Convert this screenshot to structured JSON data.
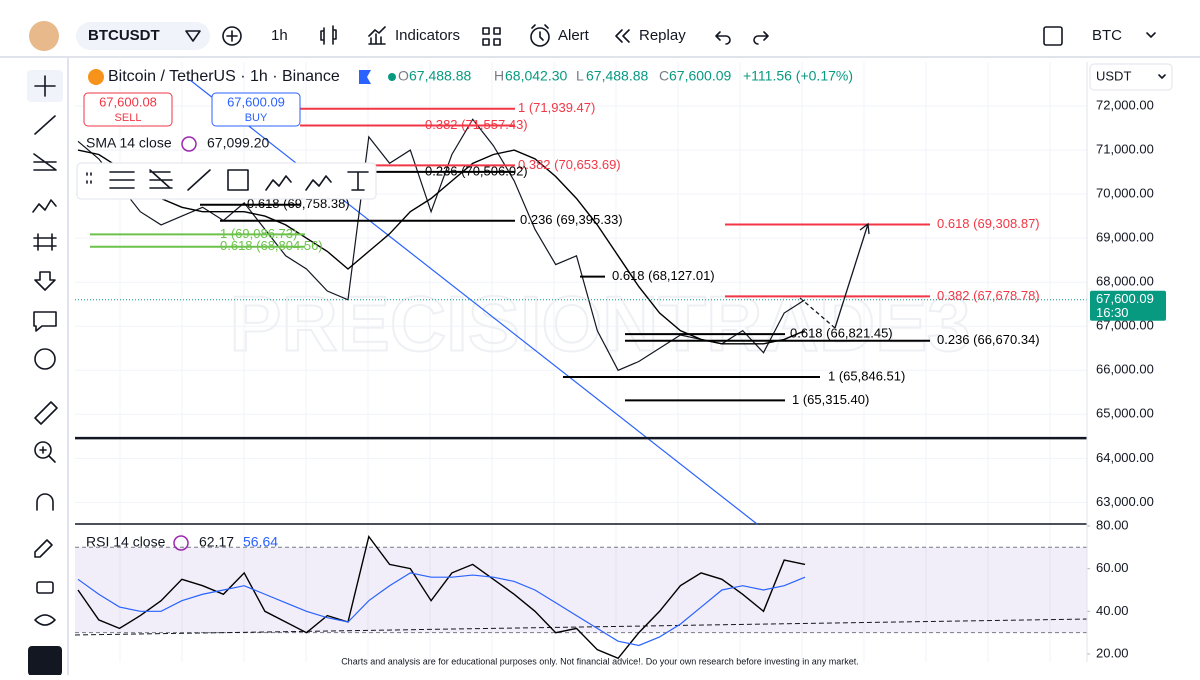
{
  "toolbar": {
    "symbol": "BTCUSDT",
    "interval": "1h",
    "indicators": "Indicators",
    "alert": "Alert",
    "replay": "Replay",
    "currency": "BTC"
  },
  "legend": {
    "title": "Bitcoin / TetherUS · 1h · Binance",
    "open": {
      "label": "O",
      "value": "67,488.88"
    },
    "high": {
      "label": "H",
      "value": "68,042.30"
    },
    "low": {
      "label": "L",
      "value": "67,488.88"
    },
    "close": {
      "label": "C",
      "value": "67,600.09"
    },
    "change": "+111.56 (+0.17%)",
    "sell": {
      "price": "67,600.08",
      "label": "SELL"
    },
    "buy": {
      "price": "67,600.09",
      "label": "BUY"
    },
    "sma": {
      "label": "SMA 14 close",
      "value": "67,099.20"
    }
  },
  "quote_currency": "USDT",
  "watermark": "PRECISIONTRADE3",
  "price_axis": {
    "ylim": [
      62600,
      73000
    ],
    "ticks": [
      {
        "value": 72000,
        "label": "72,000.00"
      },
      {
        "value": 71000,
        "label": "71,000.00"
      },
      {
        "value": 70000,
        "label": "70,000.00"
      },
      {
        "value": 69000,
        "label": "69,000.00"
      },
      {
        "value": 68000,
        "label": "68,000.00"
      },
      {
        "value": 67000,
        "label": "67,000.00"
      },
      {
        "value": 66000,
        "label": "66,000.00"
      },
      {
        "value": 65000,
        "label": "65,000.00"
      },
      {
        "value": 64000,
        "label": "64,000.00"
      },
      {
        "value": 63000,
        "label": "63,000.00"
      }
    ]
  },
  "current_price": {
    "value": 67600.09,
    "label": "67,600.09",
    "countdown": "16:30"
  },
  "price": {
    "color": "#131722",
    "values": [
      71200,
      70800,
      70200,
      69600,
      69300,
      69500,
      69700,
      69400,
      69800,
      69200,
      68600,
      68300,
      67800,
      67600,
      71300,
      70700,
      71000,
      69600,
      70900,
      71700,
      71100,
      70300,
      69200,
      68400,
      68600,
      66900,
      66000,
      66200,
      66500,
      66800,
      66700,
      66600,
      66900,
      66400,
      67300,
      67600
    ]
  },
  "sma_line": {
    "color": "#000000",
    "values": [
      71000,
      70900,
      70600,
      70200,
      69900,
      69700,
      69600,
      69600,
      69600,
      69500,
      69300,
      69000,
      68700,
      68300,
      68700,
      69100,
      69600,
      69900,
      70300,
      70700,
      70900,
      71000,
      70800,
      70400,
      69900,
      69300,
      68600,
      67900,
      67300,
      66900,
      66700,
      66600,
      66600,
      66600,
      66700,
      66900
    ]
  },
  "levels": [
    {
      "label": "1 (71,939.47)",
      "price": 71939.47,
      "color": "#f23645"
    },
    {
      "label": "0.382 (71,557.43)",
      "price": 71557.43,
      "color": "#f23645"
    },
    {
      "label": "0.382 (70,653.69)",
      "price": 70653.69,
      "color": "#f23645"
    },
    {
      "label": "0.236 (70,506.02)",
      "price": 70506.02,
      "color": "#000000"
    },
    {
      "label": "0.618 (69,758.38)",
      "price": 69758.38,
      "color": "#000000"
    },
    {
      "label": "0.236 (69,395.33)",
      "price": 69395.33,
      "color": "#000000"
    },
    {
      "label": "1 (69,086.73)",
      "price": 69086.73,
      "color": "#6cc24a"
    },
    {
      "label": "0.618 (68,804.56)",
      "price": 68804.56,
      "color": "#6cc24a"
    },
    {
      "label": "0.618 (68,127.01)",
      "price": 68127.01,
      "color": "#000000"
    },
    {
      "label": "0.618 (69,308.87)",
      "price": 69308.87,
      "color": "#f23645"
    },
    {
      "label": "0.382 (67,678.78)",
      "price": 67678.78,
      "color": "#f23645"
    },
    {
      "label": "0.618 (66,821.45)",
      "price": 66821.45,
      "color": "#000000"
    },
    {
      "label": "0.236 (66,670.34)",
      "price": 66670.34,
      "color": "#000000"
    },
    {
      "label": "1 (65,846.51)",
      "price": 65846.51,
      "color": "#000000"
    },
    {
      "label": "1 (65,315.40)",
      "price": 65315.4,
      "color": "#000000"
    }
  ],
  "support_line": 64460,
  "rsi": {
    "label": "RSI 14 close",
    "value": "62.17",
    "ma_value": "56.64",
    "ylim": [
      16.25,
      82.8
    ],
    "ticks": [
      {
        "value": 80,
        "label": "80.00"
      },
      {
        "value": 60,
        "label": "60.00"
      },
      {
        "value": 40,
        "label": "40.00"
      },
      {
        "value": 20,
        "label": "20.00"
      }
    ],
    "upper_band": 70,
    "lower_band": 30,
    "color": "#000000",
    "ma_color": "#2962ff",
    "values": [
      50,
      36,
      32,
      38,
      45,
      55,
      52,
      48,
      58,
      40,
      35,
      30,
      38,
      35,
      75,
      62,
      60,
      45,
      58,
      62,
      55,
      48,
      40,
      30,
      32,
      22,
      18,
      30,
      40,
      52,
      58,
      55,
      48,
      40,
      64,
      62
    ],
    "ma_values": [
      55,
      48,
      42,
      40,
      40,
      45,
      48,
      50,
      52,
      48,
      44,
      40,
      37,
      35,
      45,
      52,
      58,
      56,
      56,
      57,
      56,
      54,
      50,
      44,
      38,
      32,
      26,
      24,
      28,
      34,
      42,
      50,
      52,
      50,
      52,
      56
    ]
  },
  "footer": "Charts and analysis are for educational purposes only. Not financial advice!. Do your own research before investing in any market."
}
